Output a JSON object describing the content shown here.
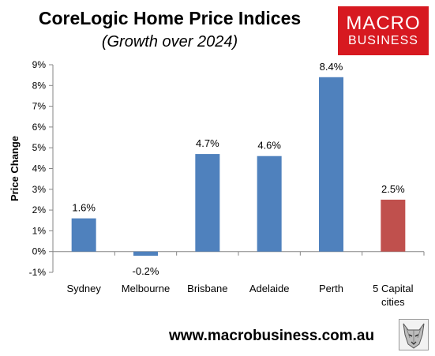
{
  "header": {
    "title": "CoreLogic Home Price Indices",
    "subtitle": "(Growth over 2024)"
  },
  "logo": {
    "line1": "MACRO",
    "line2": "BUSINESS",
    "color": "#d71920"
  },
  "footer": {
    "website": "www.macrobusiness.com.au",
    "mascot_icon": "wolf-icon"
  },
  "chart_data": {
    "type": "bar",
    "title": "CoreLogic Home Price Indices",
    "subtitle": "(Growth over 2024)",
    "ylabel": "Price Change",
    "xlabel": "",
    "ylim": [
      -1,
      9
    ],
    "yticks": [
      "-1%",
      "0%",
      "1%",
      "2%",
      "3%",
      "4%",
      "5%",
      "6%",
      "7%",
      "8%",
      "9%"
    ],
    "categories": [
      [
        "Sydney"
      ],
      [
        "Melbourne"
      ],
      [
        "Brisbane"
      ],
      [
        "Adelaide"
      ],
      [
        "Perth"
      ],
      [
        "5 Capital",
        "cities"
      ]
    ],
    "values": [
      1.6,
      -0.2,
      4.7,
      4.6,
      8.4,
      2.5
    ],
    "data_labels": [
      "1.6%",
      "-0.2%",
      "4.7%",
      "4.6%",
      "8.4%",
      "2.5%"
    ],
    "colors": [
      "#4f81bd",
      "#4f81bd",
      "#4f81bd",
      "#4f81bd",
      "#4f81bd",
      "#c0504d"
    ],
    "grid": false,
    "legend": "none"
  }
}
